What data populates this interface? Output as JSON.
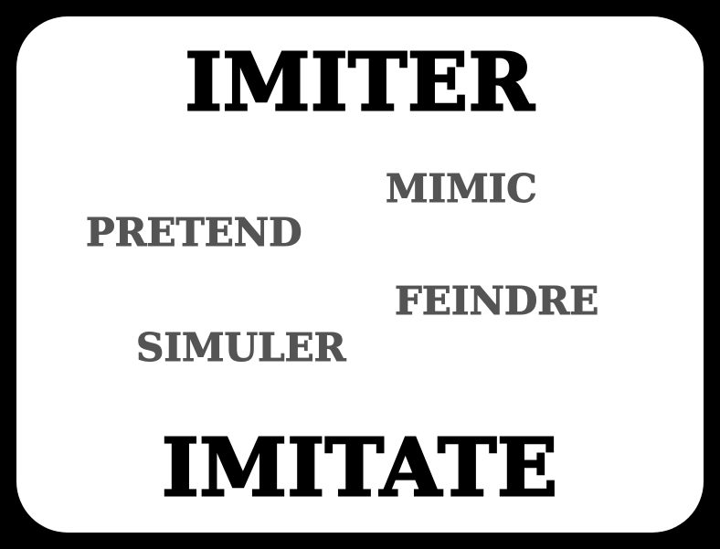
{
  "card": {
    "top_word": "IMITER",
    "bottom_word": "IMITATE",
    "synonyms": {
      "mimic": "MIMIC",
      "pretend": "PRETEND",
      "feindre": "FEINDRE",
      "simuler": "SIMULER"
    }
  },
  "colors": {
    "frame": "#000000",
    "card": "#ffffff",
    "headline": "#000000",
    "synonym": "#545454"
  }
}
